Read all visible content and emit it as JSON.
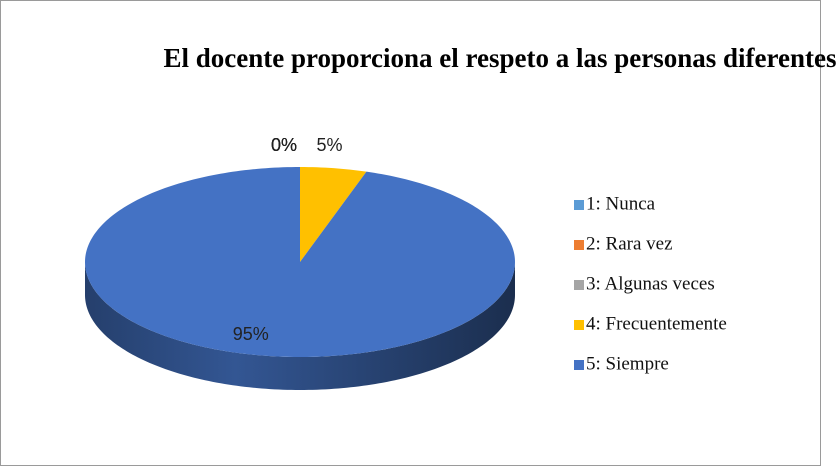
{
  "chart_data": {
    "type": "pie",
    "title": "El docente proporciona el respeto a las personas diferentes",
    "categories": [
      "1: Nunca",
      "2: Rara vez",
      "3: Algunas veces",
      "4: Frecuentemente",
      "5: Siempre"
    ],
    "series": [
      {
        "values": [
          0,
          0,
          0,
          5,
          95
        ],
        "value_labels": [
          "0%",
          "0%",
          "0%",
          "5%",
          "95%"
        ],
        "colors": [
          "#5b9bd5",
          "#ed7d31",
          "#a5a5a5",
          "#ffc000",
          "#4472c4"
        ]
      }
    ],
    "legend": "right"
  }
}
